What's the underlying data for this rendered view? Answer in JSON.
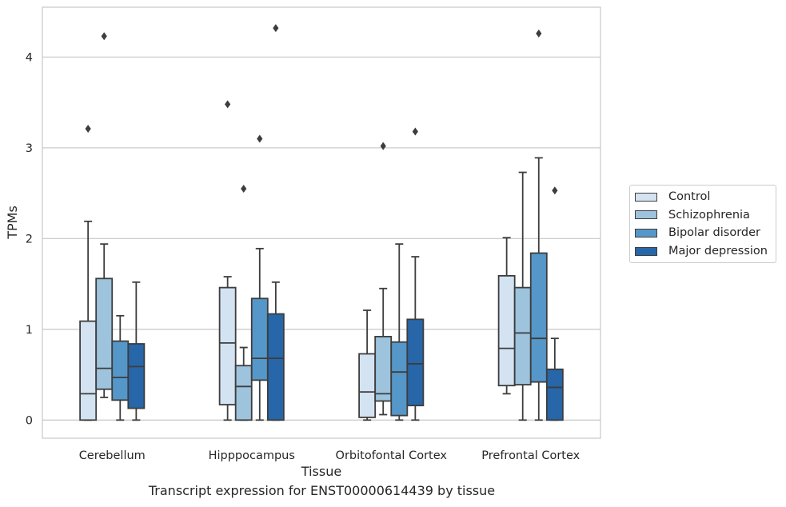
{
  "chart_data": {
    "type": "boxplot",
    "xlabel": "Tissue",
    "ylabel": "TPMs",
    "caption": "Transcript expression for ENST00000614439 by tissue",
    "ylim": [
      -0.2,
      4.55
    ],
    "yticks": [
      0,
      1,
      2,
      3,
      4
    ],
    "grid": "horizontal",
    "legend_position": "right",
    "categories": [
      "Cerebellum",
      "Hipppocampus",
      "Orbitofontal Cortex",
      "Prefrontal Cortex"
    ],
    "series": [
      {
        "name": "Control",
        "color": "#d4e3f2",
        "boxes": [
          {
            "whislo": 0.0,
            "q1": 0.0,
            "med": 0.29,
            "q3": 1.09,
            "whishi": 2.19,
            "fliers": [
              3.21
            ]
          },
          {
            "whislo": 0.0,
            "q1": 0.17,
            "med": 0.85,
            "q3": 1.46,
            "whishi": 1.58,
            "fliers": [
              3.48
            ]
          },
          {
            "whislo": 0.0,
            "q1": 0.03,
            "med": 0.31,
            "q3": 0.73,
            "whishi": 1.21,
            "fliers": []
          },
          {
            "whislo": 0.29,
            "q1": 0.38,
            "med": 0.79,
            "q3": 1.59,
            "whishi": 2.01,
            "fliers": []
          }
        ]
      },
      {
        "name": "Schizophrenia",
        "color": "#9dc3dd",
        "boxes": [
          {
            "whislo": 0.25,
            "q1": 0.34,
            "med": 0.57,
            "q3": 1.56,
            "whishi": 1.94,
            "fliers": [
              4.23
            ]
          },
          {
            "whislo": 0.0,
            "q1": 0.0,
            "med": 0.37,
            "q3": 0.6,
            "whishi": 0.8,
            "fliers": [
              2.55
            ]
          },
          {
            "whislo": 0.06,
            "q1": 0.21,
            "med": 0.29,
            "q3": 0.92,
            "whishi": 1.45,
            "fliers": [
              3.02
            ]
          },
          {
            "whislo": 0.0,
            "q1": 0.39,
            "med": 0.96,
            "q3": 1.46,
            "whishi": 2.73,
            "fliers": []
          }
        ]
      },
      {
        "name": "Bipolar disorder",
        "color": "#5597c8",
        "boxes": [
          {
            "whislo": 0.0,
            "q1": 0.22,
            "med": 0.47,
            "q3": 0.87,
            "whishi": 1.15,
            "fliers": []
          },
          {
            "whislo": 0.0,
            "q1": 0.44,
            "med": 0.68,
            "q3": 1.34,
            "whishi": 1.89,
            "fliers": [
              3.1
            ]
          },
          {
            "whislo": 0.0,
            "q1": 0.05,
            "med": 0.53,
            "q3": 0.86,
            "whishi": 1.94,
            "fliers": []
          },
          {
            "whislo": 0.0,
            "q1": 0.42,
            "med": 0.9,
            "q3": 1.84,
            "whishi": 2.89,
            "fliers": [
              4.26
            ]
          }
        ]
      },
      {
        "name": "Major depression",
        "color": "#2766a8",
        "boxes": [
          {
            "whislo": 0.0,
            "q1": 0.13,
            "med": 0.59,
            "q3": 0.84,
            "whishi": 1.52,
            "fliers": []
          },
          {
            "whislo": 0.0,
            "q1": 0.0,
            "med": 0.68,
            "q3": 1.17,
            "whishi": 1.52,
            "fliers": [
              4.32
            ]
          },
          {
            "whislo": 0.0,
            "q1": 0.16,
            "med": 0.62,
            "q3": 1.11,
            "whishi": 1.8,
            "fliers": [
              3.18
            ]
          },
          {
            "whislo": 0.0,
            "q1": 0.0,
            "med": 0.36,
            "q3": 0.56,
            "whishi": 0.9,
            "fliers": [
              2.53
            ]
          }
        ]
      }
    ]
  }
}
